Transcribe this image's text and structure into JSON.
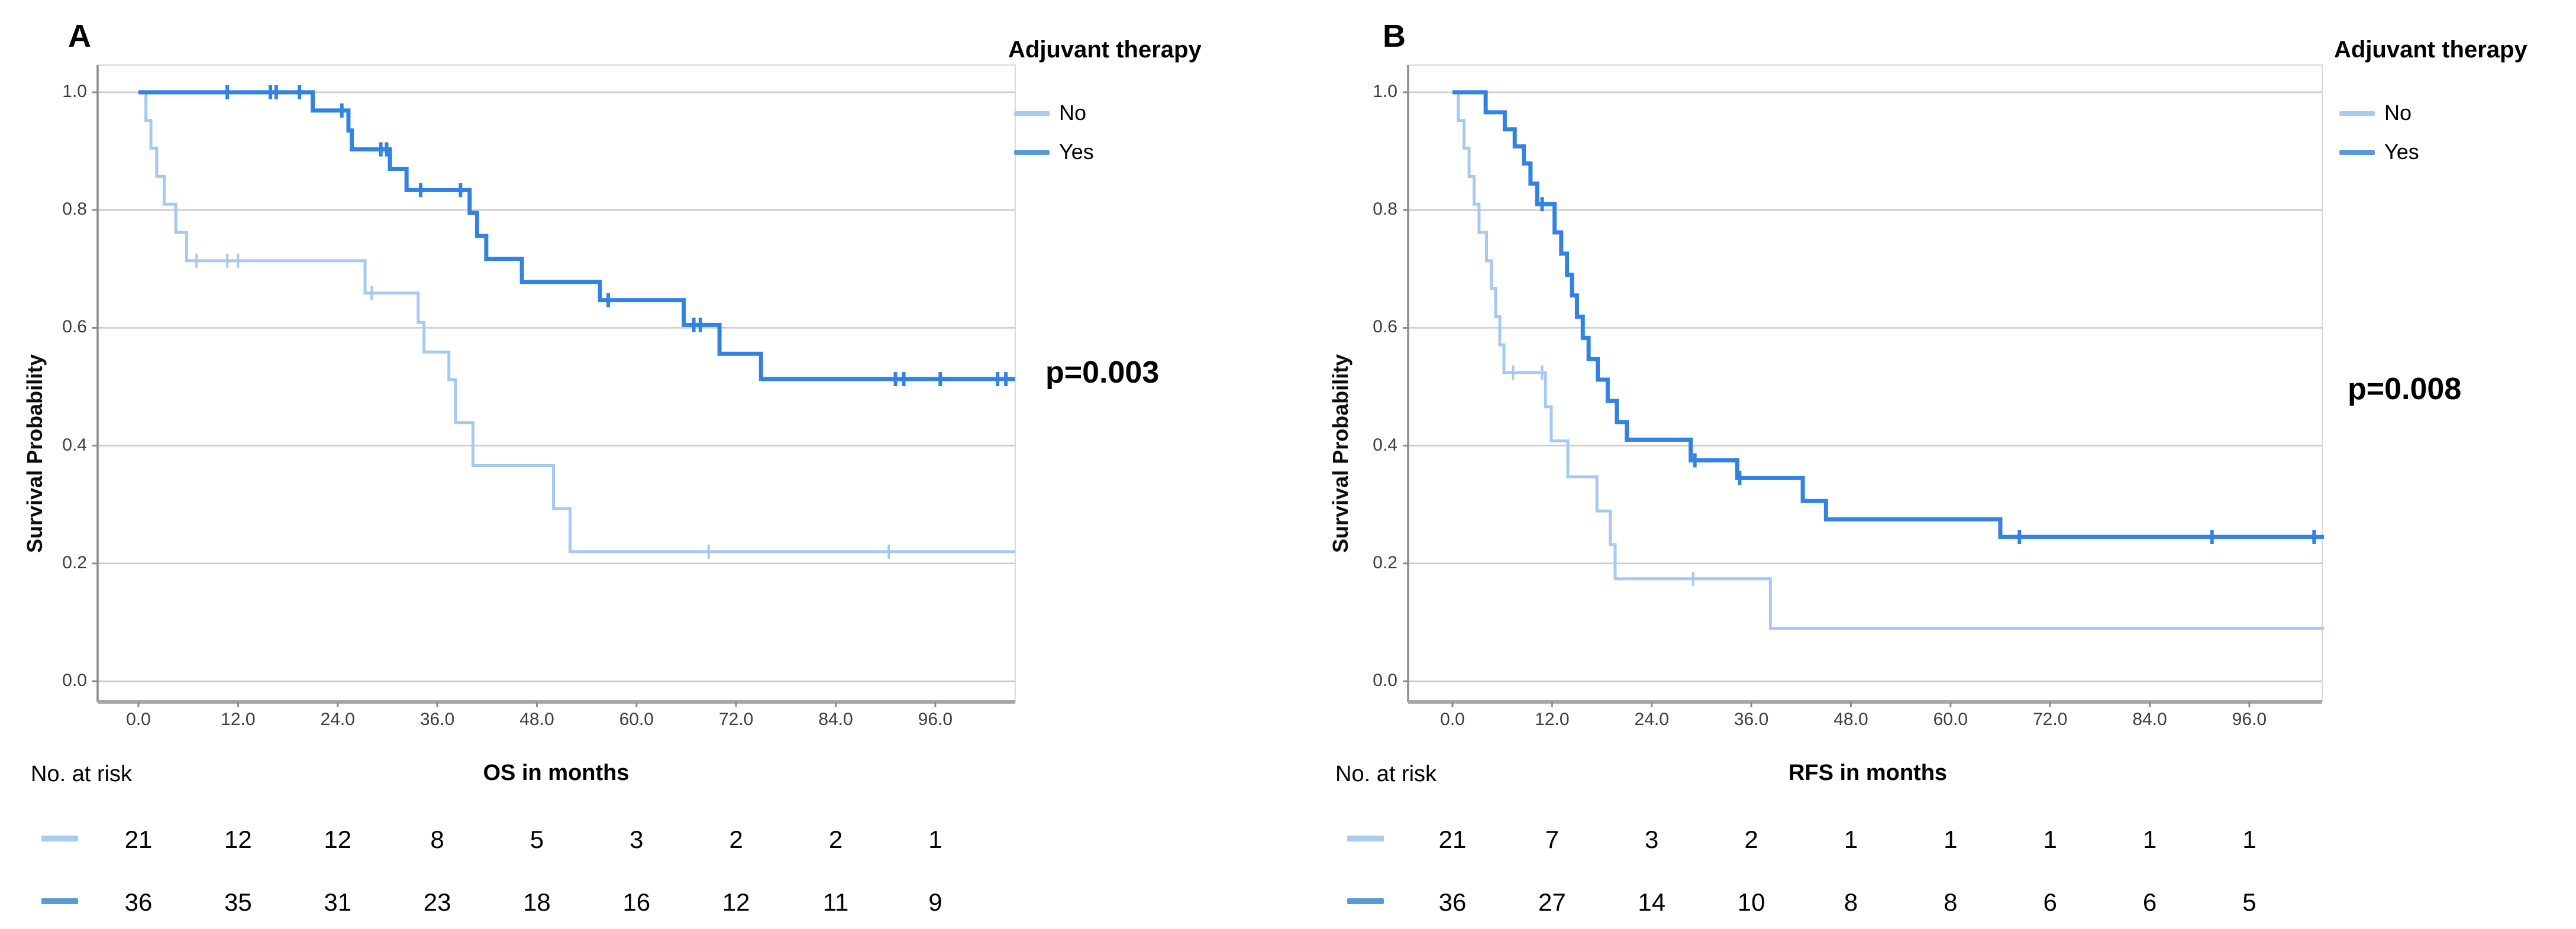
{
  "colors": {
    "no_curve": "#A6C9F0",
    "yes_curve": "#3282E2",
    "no_swatch": "#A9CBEF",
    "yes_swatch": "#5B9BD5",
    "grid": "#CBCBCB",
    "frame": "#D9D9D9",
    "axis": "#8C8C8C",
    "bottom_axis": "#A6A6A6",
    "tick_text": "#3D3D3D"
  },
  "chart_data": [
    {
      "type": "line",
      "subtype": "kaplan-meier",
      "panel_label": "A",
      "xlabel": "OS in months",
      "ylabel": "Survival Probability",
      "legend_title": "Adjuvant therapy",
      "p_value": "p=0.003",
      "grid": "horizontal",
      "xlim": [
        0,
        105.6
      ],
      "ylim": [
        0.0,
        1.0
      ],
      "xticks": [
        "0.0",
        "12.0",
        "24.0",
        "36.0",
        "48.0",
        "60.0",
        "72.0",
        "84.0",
        "96.0"
      ],
      "xtick_values": [
        0,
        12,
        24,
        36,
        48,
        60,
        72,
        84,
        96
      ],
      "yticks": [
        "0.0",
        "0.2",
        "0.4",
        "0.6",
        "0.8",
        "1.0"
      ],
      "ytick_values": [
        0.0,
        0.2,
        0.4,
        0.6,
        0.8,
        1.0
      ],
      "legend_position": "top-right",
      "series": [
        {
          "name": "No",
          "color_key": "no_curve",
          "start_prob": 1.0,
          "end_month": 105.6,
          "steps": [
            [
              0.9,
              0.952
            ],
            [
              1.5,
              0.905
            ],
            [
              2.2,
              0.857
            ],
            [
              3.1,
              0.81
            ],
            [
              4.5,
              0.762
            ],
            [
              5.8,
              0.714
            ],
            [
              27.3,
              0.659
            ],
            [
              33.7,
              0.609
            ],
            [
              34.4,
              0.559
            ],
            [
              37.4,
              0.512
            ],
            [
              38.2,
              0.439
            ],
            [
              40.3,
              0.366
            ],
            [
              50.0,
              0.293
            ],
            [
              52.0,
              0.22
            ]
          ],
          "censors": [
            [
              7.0,
              0.714
            ],
            [
              10.7,
              0.714
            ],
            [
              12.0,
              0.714
            ],
            [
              28.1,
              0.659
            ],
            [
              68.7,
              0.22
            ],
            [
              90.4,
              0.22
            ]
          ]
        },
        {
          "name": "Yes",
          "color_key": "yes_curve",
          "start_prob": 1.0,
          "end_month": 105.6,
          "steps": [
            [
              21.0,
              0.969
            ],
            [
              25.3,
              0.935
            ],
            [
              25.7,
              0.903
            ],
            [
              30.3,
              0.87
            ],
            [
              32.3,
              0.834
            ],
            [
              39.9,
              0.795
            ],
            [
              40.8,
              0.756
            ],
            [
              41.9,
              0.717
            ],
            [
              46.2,
              0.678
            ],
            [
              55.6,
              0.647
            ],
            [
              65.7,
              0.605
            ],
            [
              70.0,
              0.556
            ],
            [
              75.0,
              0.513
            ]
          ],
          "censors": [
            [
              10.7,
              1.0
            ],
            [
              15.9,
              1.0
            ],
            [
              16.6,
              1.0
            ],
            [
              19.4,
              1.0
            ],
            [
              24.5,
              0.969
            ],
            [
              29.2,
              0.903
            ],
            [
              29.9,
              0.903
            ],
            [
              34.0,
              0.834
            ],
            [
              38.8,
              0.834
            ],
            [
              56.6,
              0.647
            ],
            [
              66.9,
              0.605
            ],
            [
              67.7,
              0.605
            ],
            [
              91.2,
              0.513
            ],
            [
              92.2,
              0.513
            ],
            [
              96.6,
              0.513
            ],
            [
              103.5,
              0.513
            ],
            [
              104.5,
              0.513
            ]
          ]
        }
      ],
      "at_risk": {
        "label": "No. at risk",
        "rows": [
          {
            "series": "No",
            "counts": [
              21,
              12,
              12,
              8,
              5,
              3,
              2,
              2,
              1
            ]
          },
          {
            "series": "Yes",
            "counts": [
              36,
              35,
              31,
              23,
              18,
              16,
              12,
              11,
              9
            ]
          }
        ]
      }
    },
    {
      "type": "line",
      "subtype": "kaplan-meier",
      "panel_label": "B",
      "xlabel": "RFS in months",
      "ylabel": "Survival Probability",
      "legend_title": "Adjuvant therapy",
      "p_value": "p=0.008",
      "grid": "horizontal",
      "xlim": [
        0,
        105.0
      ],
      "ylim": [
        0.0,
        1.0
      ],
      "xticks": [
        "0.0",
        "12.0",
        "24.0",
        "36.0",
        "48.0",
        "60.0",
        "72.0",
        "84.0",
        "96.0"
      ],
      "xtick_values": [
        0,
        12,
        24,
        36,
        48,
        60,
        72,
        84,
        96
      ],
      "yticks": [
        "0.0",
        "0.2",
        "0.4",
        "0.6",
        "0.8",
        "1.0"
      ],
      "ytick_values": [
        0.0,
        0.2,
        0.4,
        0.6,
        0.8,
        1.0
      ],
      "legend_position": "top-right",
      "series": [
        {
          "name": "No",
          "color_key": "no_curve",
          "start_prob": 1.0,
          "end_month": 105.0,
          "steps": [
            [
              0.7,
              0.952
            ],
            [
              1.4,
              0.905
            ],
            [
              2.0,
              0.857
            ],
            [
              2.6,
              0.81
            ],
            [
              3.2,
              0.762
            ],
            [
              4.1,
              0.714
            ],
            [
              4.7,
              0.667
            ],
            [
              5.2,
              0.619
            ],
            [
              5.7,
              0.571
            ],
            [
              6.2,
              0.524
            ],
            [
              11.2,
              0.466
            ],
            [
              11.9,
              0.408
            ],
            [
              13.9,
              0.347
            ],
            [
              17.4,
              0.289
            ],
            [
              19.0,
              0.232
            ],
            [
              19.6,
              0.174
            ],
            [
              38.3,
              0.09
            ]
          ],
          "censors": [
            [
              7.3,
              0.524
            ],
            [
              10.8,
              0.524
            ],
            [
              29.0,
              0.174
            ]
          ]
        },
        {
          "name": "Yes",
          "color_key": "yes_curve",
          "start_prob": 1.0,
          "end_month": 105.0,
          "steps": [
            [
              4.0,
              0.966
            ],
            [
              6.3,
              0.937
            ],
            [
              7.5,
              0.908
            ],
            [
              8.6,
              0.879
            ],
            [
              9.4,
              0.845
            ],
            [
              10.2,
              0.81
            ],
            [
              12.3,
              0.762
            ],
            [
              13.1,
              0.726
            ],
            [
              13.8,
              0.69
            ],
            [
              14.4,
              0.655
            ],
            [
              15.0,
              0.619
            ],
            [
              15.7,
              0.583
            ],
            [
              16.4,
              0.547
            ],
            [
              17.5,
              0.512
            ],
            [
              18.7,
              0.476
            ],
            [
              19.8,
              0.44
            ],
            [
              21.0,
              0.41
            ],
            [
              28.7,
              0.375
            ],
            [
              34.3,
              0.345
            ],
            [
              42.2,
              0.306
            ],
            [
              45.0,
              0.275
            ],
            [
              66.0,
              0.245
            ]
          ],
          "censors": [
            [
              10.8,
              0.81
            ],
            [
              29.2,
              0.375
            ],
            [
              34.6,
              0.345
            ],
            [
              68.3,
              0.245
            ],
            [
              91.5,
              0.245
            ],
            [
              103.8,
              0.245
            ]
          ]
        }
      ],
      "at_risk": {
        "label": "No. at risk",
        "rows": [
          {
            "series": "No",
            "counts": [
              21,
              7,
              3,
              2,
              1,
              1,
              1,
              1,
              1
            ]
          },
          {
            "series": "Yes",
            "counts": [
              36,
              27,
              14,
              10,
              8,
              8,
              6,
              6,
              5
            ]
          }
        ]
      }
    }
  ]
}
